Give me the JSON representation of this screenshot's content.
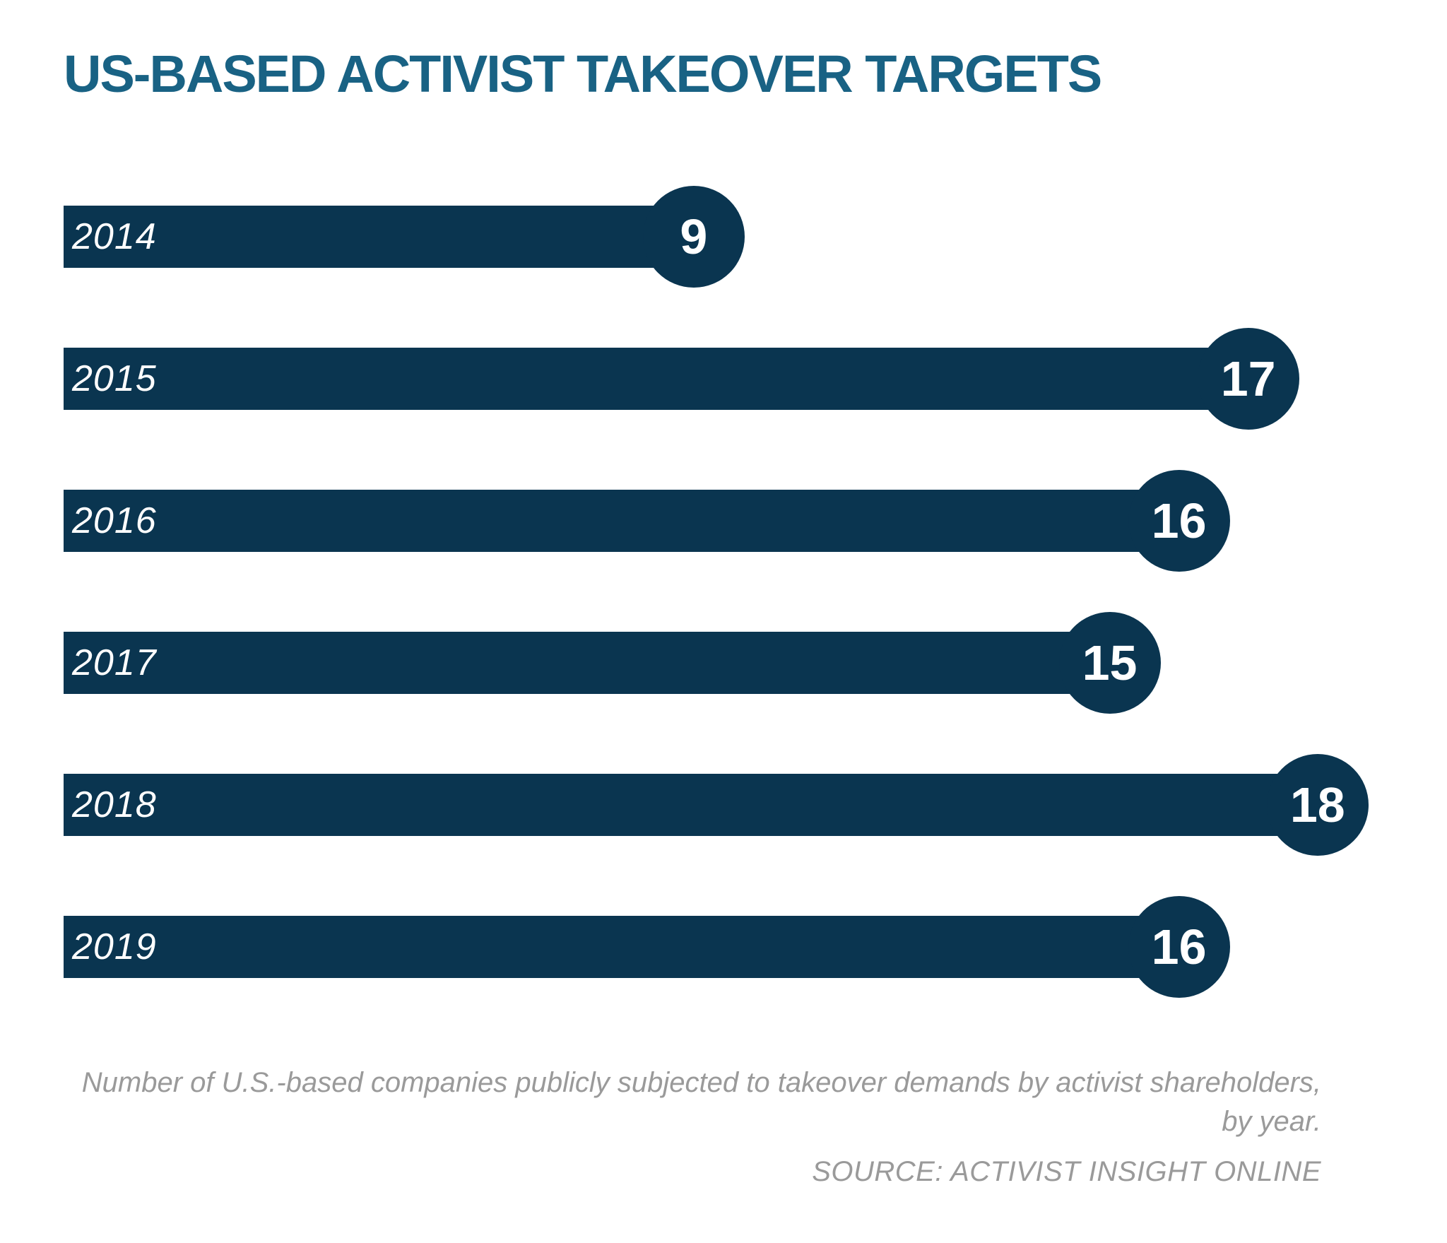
{
  "title": "US-BASED ACTIVIST TAKEOVER TARGETS",
  "chart_data": {
    "type": "bar",
    "orientation": "horizontal",
    "title": "US-BASED ACTIVIST TAKEOVER TARGETS",
    "categories": [
      "2014",
      "2015",
      "2016",
      "2017",
      "2018",
      "2019"
    ],
    "values": [
      9,
      17,
      16,
      15,
      18,
      16
    ],
    "xlabel": "",
    "ylabel": "",
    "xlim": [
      0,
      19
    ],
    "grid": false,
    "legend": false,
    "bar_color": "#0a3550",
    "value_label_style": "circle-at-bar-end",
    "value_label_color": "#ffffff",
    "category_label_position": "inside-bar-left",
    "category_label_color": "#ffffff"
  },
  "caption": {
    "line1": "Number of U.S.-based companies publicly subjected to takeover demands by activist shareholders,",
    "line2": "by year."
  },
  "source": "SOURCE: ACTIVIST INSIGHT ONLINE",
  "colors": {
    "title": "#196284",
    "bar": "#0a3550",
    "muted_text": "#9a9a9a",
    "background": "#ffffff"
  }
}
